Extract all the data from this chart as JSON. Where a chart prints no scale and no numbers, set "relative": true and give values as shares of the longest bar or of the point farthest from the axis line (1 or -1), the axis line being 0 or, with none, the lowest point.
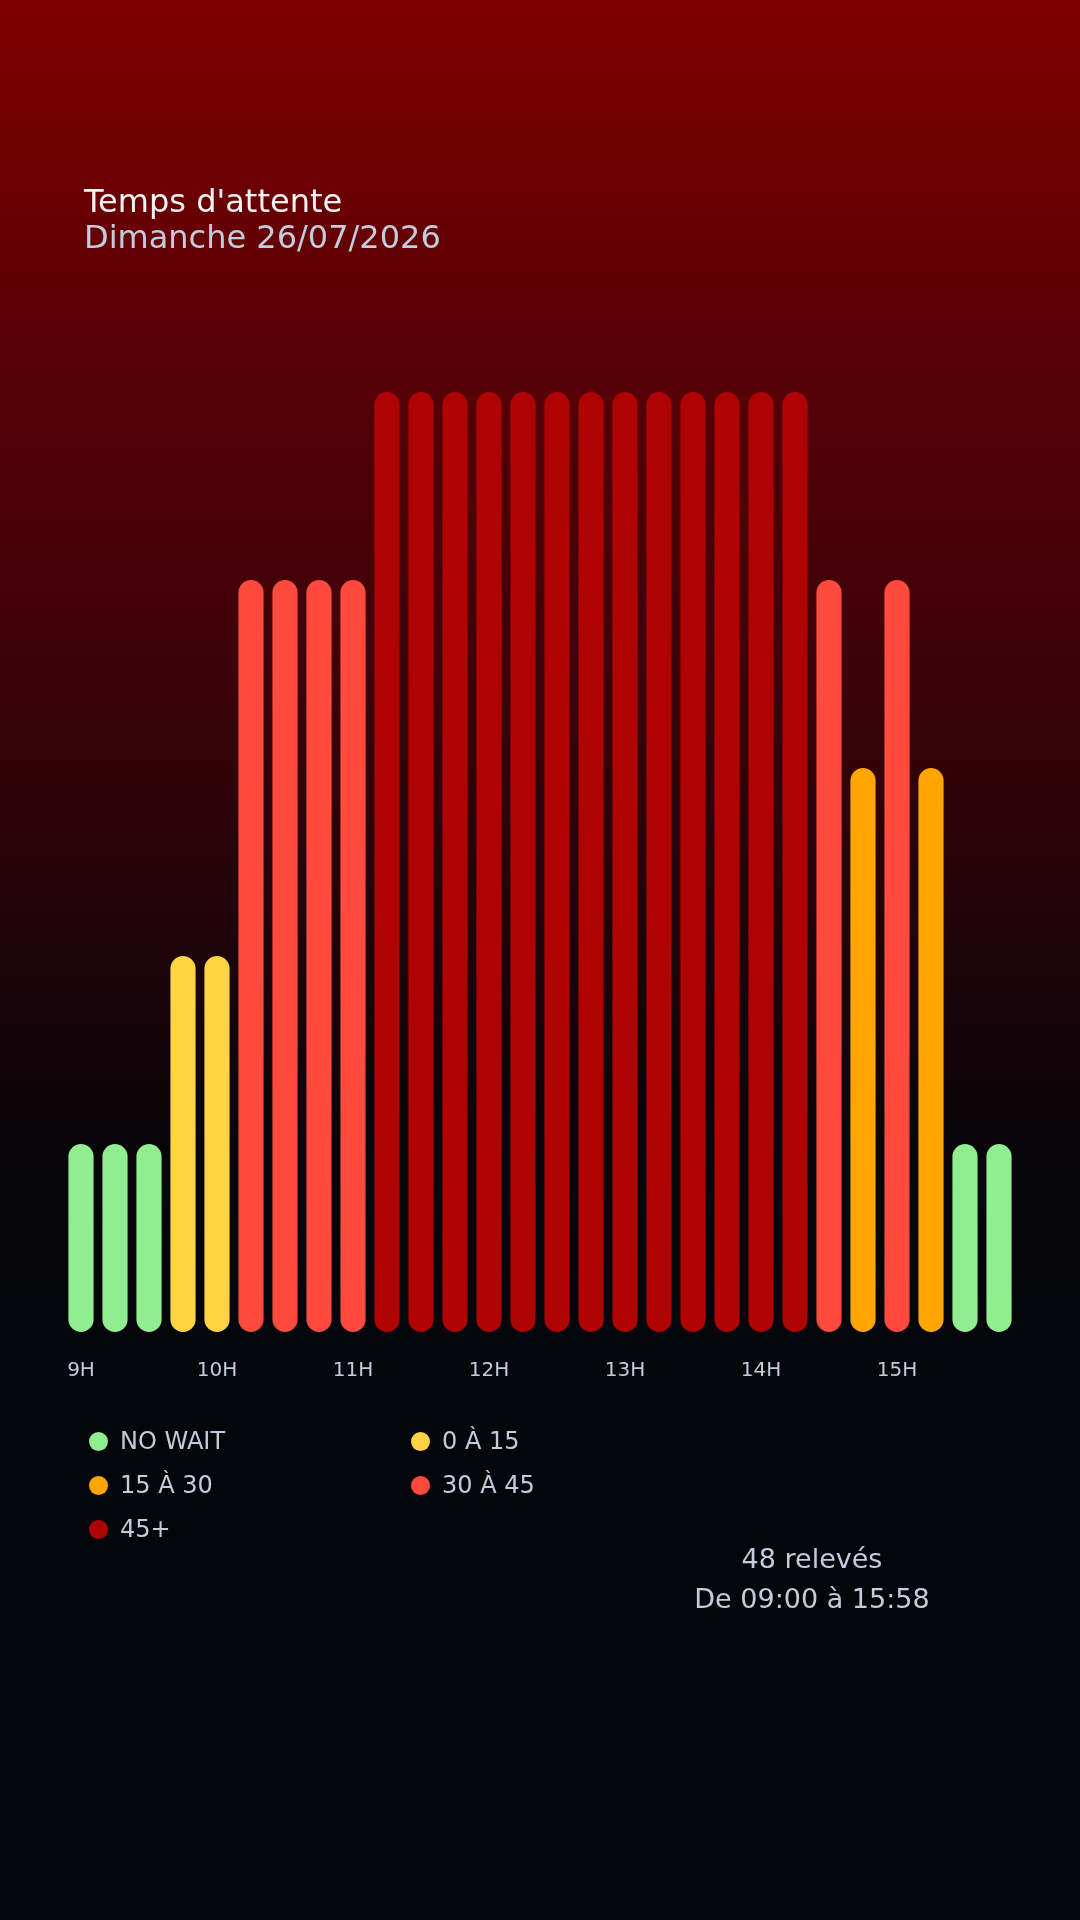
{
  "chart_data": {
    "type": "bar",
    "title": "Temps d'attente",
    "subtitle": "Dimanche 26/07/2026",
    "categories": [
      "9H",
      null,
      null,
      null,
      "10H",
      null,
      null,
      null,
      "11H",
      null,
      null,
      null,
      "12H",
      null,
      null,
      null,
      "13H",
      null,
      null,
      null,
      "14H",
      null,
      null,
      null,
      "15H",
      null,
      null,
      null
    ],
    "series": [
      {
        "name": "NO WAIT",
        "color": "#90ee90",
        "values": [
          0.2,
          0.2,
          0.2,
          null,
          null,
          null,
          null,
          null,
          null,
          null,
          null,
          null,
          null,
          null,
          null,
          null,
          null,
          null,
          null,
          null,
          null,
          null,
          null,
          null,
          null,
          null,
          0.2,
          0.2
        ]
      },
      {
        "name": "0 À 15",
        "color": "#ffd444",
        "values": [
          null,
          null,
          null,
          0.4,
          0.4,
          null,
          null,
          null,
          null,
          null,
          null,
          null,
          null,
          null,
          null,
          null,
          null,
          null,
          null,
          null,
          null,
          null,
          null,
          null,
          null,
          null,
          null,
          null
        ]
      },
      {
        "name": "15 À 30",
        "color": "#ffa500",
        "values": [
          null,
          null,
          null,
          null,
          null,
          null,
          null,
          null,
          null,
          null,
          null,
          null,
          null,
          null,
          null,
          null,
          null,
          null,
          null,
          null,
          null,
          null,
          null,
          0.6,
          null,
          0.6,
          null,
          null
        ]
      },
      {
        "name": "30 À 45",
        "color": "#ff4a3d",
        "values": [
          null,
          null,
          null,
          null,
          null,
          0.8,
          0.8,
          0.8,
          0.8,
          null,
          null,
          null,
          null,
          null,
          null,
          null,
          null,
          null,
          null,
          null,
          null,
          null,
          0.8,
          null,
          0.8,
          null,
          null,
          null
        ]
      },
      {
        "name": "45+",
        "color": "#b00404",
        "values": [
          null,
          null,
          null,
          null,
          null,
          null,
          null,
          null,
          null,
          1,
          1,
          1,
          1,
          1,
          1,
          1,
          1,
          1,
          1,
          1,
          1,
          1,
          null,
          null,
          null,
          null,
          null,
          null
        ]
      }
    ],
    "relative": true,
    "legend": "bottom left",
    "annotations": [
      "48 relevés",
      "De 09:00 à 15:58"
    ]
  }
}
